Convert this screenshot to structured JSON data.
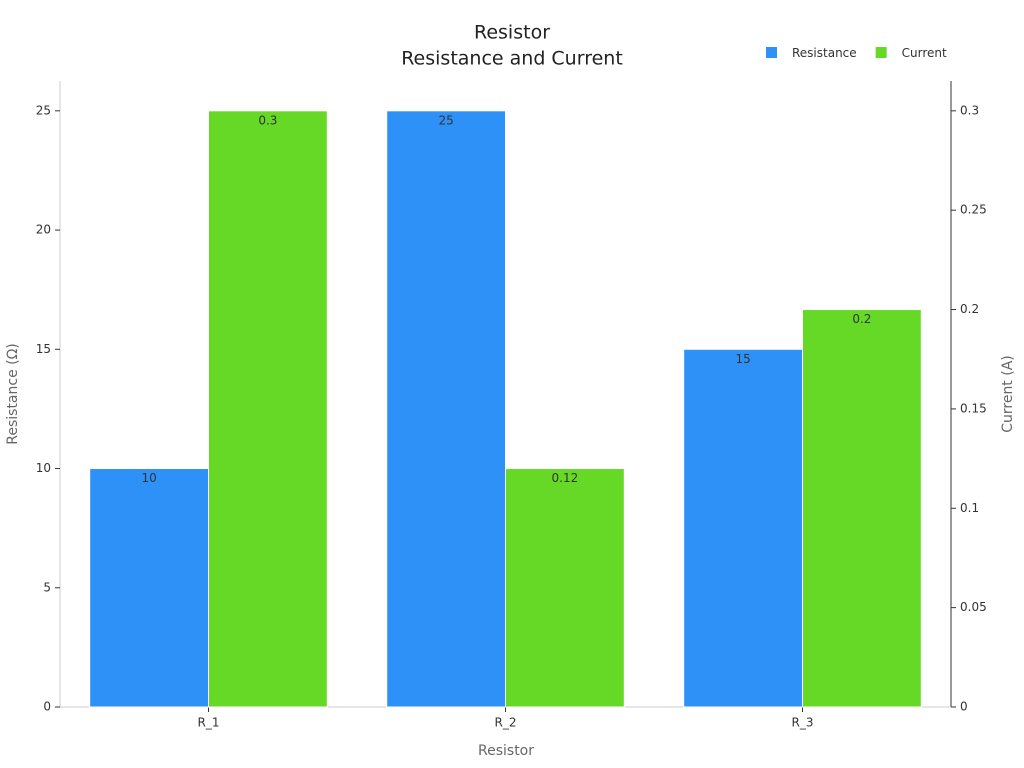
{
  "chart_data": {
    "type": "bar",
    "title": "Resistor",
    "subtitle": "Resistance and Current",
    "x_label": "Resistor",
    "y_label": "Resistance (Ω)",
    "y2_label": "Current (A)",
    "categories": [
      "R_1",
      "R_2",
      "R_3"
    ],
    "series": [
      {
        "name": "Resistance",
        "color": "#2e91f8",
        "values": [
          10,
          25,
          15
        ]
      },
      {
        "name": "Current",
        "color": "#66d926",
        "axis": "y2",
        "values": [
          0.3,
          0.12,
          0.2
        ]
      }
    ],
    "ylim": [
      0,
      26.25
    ],
    "yticks": [
      0,
      5,
      10,
      15,
      20,
      25
    ],
    "y2lim": [
      0,
      0.315
    ],
    "y2ticks": [
      0,
      0.05,
      0.1,
      0.15,
      0.2,
      0.25,
      0.3
    ],
    "legend": "top-right",
    "grid": false
  }
}
